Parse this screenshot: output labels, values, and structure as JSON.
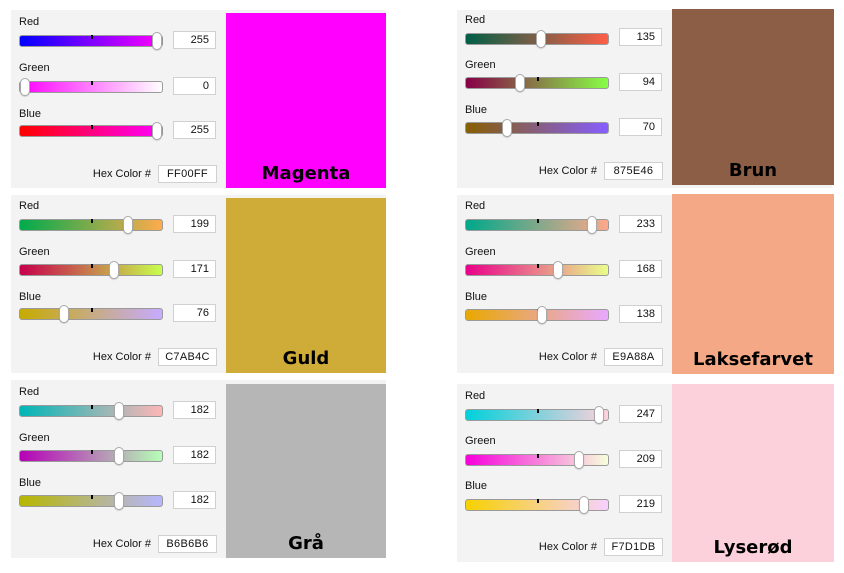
{
  "cards": [
    {
      "name": "Magenta",
      "hex": "FF00FF",
      "swatch_color": "#FF00FF",
      "hex_label": "Hex Color #",
      "sliders": [
        {
          "label": "Red",
          "value": "255",
          "fraction": 1.0,
          "gradient": [
            "#0000FF",
            "#FF00FF"
          ]
        },
        {
          "label": "Green",
          "value": "0",
          "fraction": 0.0,
          "gradient": [
            "#FF00FF",
            "#FFFFFF"
          ]
        },
        {
          "label": "Blue",
          "value": "255",
          "fraction": 1.0,
          "gradient": [
            "#FF0000",
            "#FF00FF"
          ]
        }
      ]
    },
    {
      "name": "Brun",
      "hex": "875E46",
      "swatch_color": "#8B5E45",
      "hex_label": "Hex Color #",
      "sliders": [
        {
          "label": "Red",
          "value": "135",
          "fraction": 0.529,
          "gradient": [
            "#005E46",
            "#FF5E46"
          ]
        },
        {
          "label": "Green",
          "value": "94",
          "fraction": 0.369,
          "gradient": [
            "#870046",
            "#87FF46"
          ]
        },
        {
          "label": "Blue",
          "value": "70",
          "fraction": 0.275,
          "gradient": [
            "#875E00",
            "#875EFF"
          ]
        }
      ]
    },
    {
      "name": "Guld",
      "hex": "C7AB4C",
      "swatch_color": "#CFAB38",
      "hex_label": "Hex Color #",
      "sliders": [
        {
          "label": "Red",
          "value": "199",
          "fraction": 0.78,
          "gradient": [
            "#00AB4C",
            "#FFAB4C"
          ]
        },
        {
          "label": "Green",
          "value": "171",
          "fraction": 0.671,
          "gradient": [
            "#C7004C",
            "#C7FF4C"
          ]
        },
        {
          "label": "Blue",
          "value": "76",
          "fraction": 0.298,
          "gradient": [
            "#C7AB00",
            "#C7ABFF"
          ]
        }
      ]
    },
    {
      "name": "Laksefarvet",
      "hex": "E9A88A",
      "swatch_color": "#F4A886",
      "hex_label": "Hex Color #",
      "sliders": [
        {
          "label": "Red",
          "value": "233",
          "fraction": 0.914,
          "gradient": [
            "#00A88A",
            "#FFA88A"
          ]
        },
        {
          "label": "Green",
          "value": "168",
          "fraction": 0.659,
          "gradient": [
            "#E9008A",
            "#E9FF8A"
          ]
        },
        {
          "label": "Blue",
          "value": "138",
          "fraction": 0.541,
          "gradient": [
            "#E9A800",
            "#E9A8FF"
          ]
        }
      ]
    },
    {
      "name": "Grå",
      "hex": "B6B6B6",
      "swatch_color": "#B6B6B6",
      "hex_label": "Hex Color #",
      "sliders": [
        {
          "label": "Red",
          "value": "182",
          "fraction": 0.714,
          "gradient": [
            "#00B6B6",
            "#FFB6B6"
          ]
        },
        {
          "label": "Green",
          "value": "182",
          "fraction": 0.714,
          "gradient": [
            "#B600B6",
            "#B6FFB6"
          ]
        },
        {
          "label": "Blue",
          "value": "182",
          "fraction": 0.714,
          "gradient": [
            "#B6B600",
            "#B6B6FF"
          ]
        }
      ]
    },
    {
      "name": "Lyserød",
      "hex": "F7D1DB",
      "swatch_color": "#FDD1DB",
      "hex_label": "Hex Color #",
      "sliders": [
        {
          "label": "Red",
          "value": "247",
          "fraction": 0.969,
          "gradient": [
            "#00D1DB",
            "#FFD1DB"
          ]
        },
        {
          "label": "Green",
          "value": "209",
          "fraction": 0.82,
          "gradient": [
            "#F700DB",
            "#F7FFDB"
          ]
        },
        {
          "label": "Blue",
          "value": "219",
          "fraction": 0.859,
          "gradient": [
            "#F7D100",
            "#F7D1FF"
          ]
        }
      ]
    }
  ]
}
